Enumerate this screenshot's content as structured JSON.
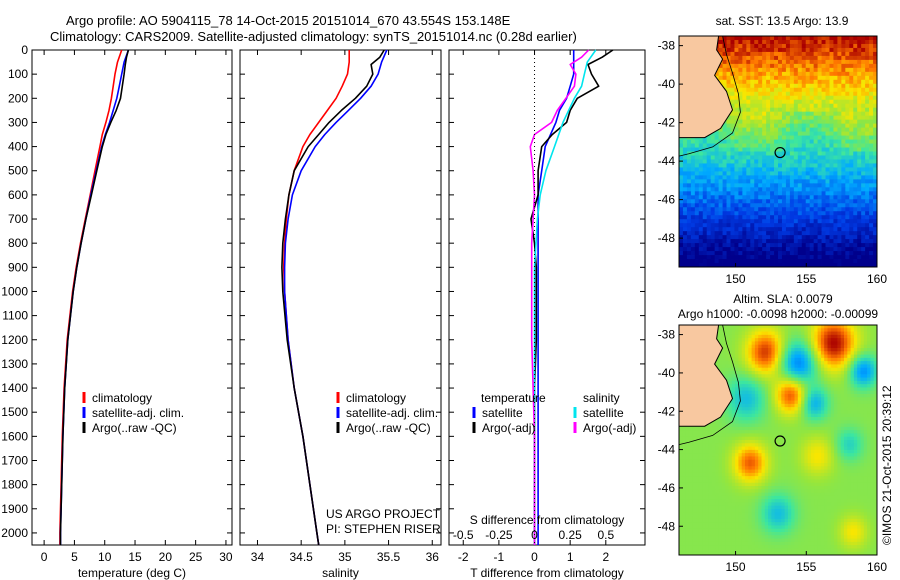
{
  "header": {
    "line1": "Argo profile: AO 5904115_78 14-Oct-2015 20151014_670 43.554S 153.148E",
    "line2": "Climatology: CARS2009. Satellite-adjusted climatology: synTS_20151014.nc (0.28d earlier)"
  },
  "colors": {
    "climatology": "#ff0000",
    "satellite": "#0000ff",
    "argo": "#000000",
    "salinity_satellite": "#00e5ee",
    "salinity_argo": "#ff00ff"
  },
  "chart_data": [
    {
      "type": "line",
      "panel": "temperature",
      "xlabel": "temperature (deg C)",
      "xlim": [
        -2,
        31
      ],
      "xticks": [
        0,
        5,
        10,
        15,
        20,
        25,
        30
      ],
      "ylim": [
        2050,
        0
      ],
      "yticks": [
        0,
        100,
        200,
        300,
        400,
        500,
        600,
        700,
        800,
        900,
        1000,
        1100,
        1200,
        1300,
        1400,
        1500,
        1600,
        1700,
        1800,
        1900,
        2000
      ],
      "legend": [
        "climatology",
        "satellite-adj. clim.",
        "Argo(..raw -QC)"
      ],
      "series": [
        {
          "name": "climatology",
          "depth": [
            0,
            50,
            100,
            150,
            200,
            250,
            300,
            350,
            400,
            500,
            600,
            700,
            800,
            900,
            1000,
            1200,
            1400,
            1600,
            1800,
            2000,
            2050
          ],
          "values": [
            12.8,
            12.1,
            11.7,
            11.4,
            11.1,
            10.7,
            10.2,
            9.6,
            9.2,
            8.4,
            7.6,
            6.8,
            6.0,
            5.3,
            4.7,
            3.8,
            3.3,
            3.0,
            2.8,
            2.6,
            2.6
          ]
        },
        {
          "name": "satellite-adj. clim.",
          "depth": [
            0,
            50,
            100,
            150,
            200,
            250,
            300,
            350,
            400,
            500,
            600,
            700,
            800,
            900,
            1000,
            1200,
            1400,
            1600,
            1800,
            2000,
            2050
          ],
          "values": [
            13.9,
            13.2,
            12.8,
            12.4,
            12.0,
            11.4,
            10.8,
            10.1,
            9.5,
            8.6,
            7.7,
            6.9,
            6.1,
            5.4,
            4.8,
            3.9,
            3.4,
            3.1,
            2.9,
            2.7,
            2.7
          ]
        },
        {
          "name": "Argo(..raw -QC)",
          "depth": [
            0,
            30,
            60,
            100,
            150,
            200,
            250,
            300,
            350,
            400,
            500,
            600,
            700,
            800,
            900,
            1000,
            1200,
            1400,
            1600,
            1800,
            2000,
            2050
          ],
          "values": [
            13.9,
            13.6,
            13.4,
            13.2,
            12.9,
            12.6,
            11.9,
            11.0,
            10.2,
            9.6,
            8.7,
            7.8,
            6.9,
            6.1,
            5.4,
            4.8,
            3.9,
            3.4,
            3.1,
            2.9,
            2.7,
            2.7
          ]
        }
      ]
    },
    {
      "type": "line",
      "panel": "salinity",
      "xlabel": "salinity",
      "xlim": [
        33.8,
        36.1
      ],
      "xticks": [
        34,
        34.5,
        35,
        35.5,
        36
      ],
      "ylim": [
        2050,
        0
      ],
      "legend": [
        "climatology",
        "satellite-adj. clim.",
        "Argo(..raw -QC)"
      ],
      "annotations": [
        "US ARGO PROJECT",
        "PI: STEPHEN RISER"
      ],
      "series": [
        {
          "name": "climatology",
          "depth": [
            0,
            50,
            100,
            150,
            200,
            250,
            300,
            350,
            400,
            500,
            600,
            700,
            800,
            900,
            1000,
            1200,
            1400,
            1600,
            1800,
            2000,
            2050
          ],
          "values": [
            35.05,
            35.05,
            35.03,
            34.97,
            34.9,
            34.8,
            34.7,
            34.6,
            34.52,
            34.42,
            34.36,
            34.33,
            34.31,
            34.3,
            34.31,
            34.35,
            34.42,
            34.52,
            34.6,
            34.68,
            34.7
          ]
        },
        {
          "name": "satellite-adj. clim.",
          "depth": [
            0,
            50,
            100,
            150,
            200,
            250,
            300,
            350,
            400,
            500,
            600,
            700,
            800,
            900,
            1000,
            1200,
            1400,
            1600,
            1800,
            2000,
            2050
          ],
          "values": [
            35.48,
            35.42,
            35.38,
            35.3,
            35.18,
            35.04,
            34.9,
            34.77,
            34.66,
            34.5,
            34.4,
            34.35,
            34.32,
            34.31,
            34.31,
            34.35,
            34.42,
            34.52,
            34.6,
            34.68,
            34.7
          ]
        },
        {
          "name": "Argo(..raw -QC)",
          "depth": [
            0,
            30,
            60,
            100,
            150,
            200,
            250,
            300,
            350,
            400,
            500,
            600,
            700,
            800,
            900,
            1000,
            1200,
            1400,
            1600,
            1800,
            2000,
            2050
          ],
          "values": [
            35.45,
            35.4,
            35.3,
            35.32,
            35.25,
            35.12,
            34.96,
            34.82,
            34.7,
            34.58,
            34.42,
            34.36,
            34.32,
            34.29,
            34.28,
            34.29,
            34.34,
            34.42,
            34.52,
            34.6,
            34.68,
            34.7
          ]
        }
      ]
    },
    {
      "type": "line",
      "panel": "difference",
      "xlabel": "T difference from climatology",
      "xlabel_top": "S difference from climatology",
      "xlim": [
        -2.4,
        3.1
      ],
      "xticks": [
        -2,
        -1,
        0,
        1,
        2
      ],
      "xticks_top": [
        "-0.5",
        "-0.25",
        "0",
        "0.25",
        "0.5"
      ],
      "ylim": [
        2050,
        0
      ],
      "legend": [
        "temperature",
        "satellite",
        "Argo(-adj)",
        "salinity",
        "satellite",
        "Argo(-adj)"
      ],
      "series": [
        {
          "name": "satellite",
          "depth": [
            0,
            50,
            100,
            150,
            200,
            250,
            300,
            400,
            500,
            600,
            700,
            800,
            900,
            1000,
            1200,
            1400,
            1600,
            1800,
            2000,
            2050
          ],
          "values": [
            1.1,
            1.1,
            1.1,
            1.0,
            0.9,
            0.7,
            0.6,
            0.3,
            0.2,
            0.1,
            0.1,
            0.1,
            0.1,
            0.1,
            0.1,
            0.1,
            0.1,
            0.1,
            0.1,
            0.1
          ]
        },
        {
          "name": "Argo(-adj)",
          "depth": [
            0,
            30,
            60,
            100,
            150,
            200,
            250,
            300,
            350,
            400,
            500,
            600,
            700,
            800,
            900,
            1000,
            1200,
            1400,
            1600,
            1800,
            2000,
            2050
          ],
          "values": [
            2.2,
            1.9,
            1.5,
            1.6,
            1.8,
            1.2,
            1.0,
            0.9,
            0.5,
            0.2,
            0.1,
            0.1,
            -0.1,
            0.0,
            0.05,
            0.05,
            0.05,
            0.0,
            0.0,
            0.0,
            0.0,
            0.0
          ]
        },
        {
          "name": "satellite",
          "depth": [
            0,
            50,
            100,
            150,
            200,
            250,
            300,
            400,
            500,
            600,
            700,
            800,
            900,
            1000,
            1200,
            1400,
            1600,
            1800,
            2000,
            2050
          ],
          "values": [
            0.43,
            0.37,
            0.35,
            0.33,
            0.28,
            0.24,
            0.2,
            0.14,
            0.08,
            0.04,
            0.02,
            0.01,
            0.0,
            0.0,
            0.0,
            0.0,
            0.0,
            0.0,
            0.0,
            0.0
          ]
        },
        {
          "name": "Argo(-adj)",
          "depth": [
            0,
            30,
            60,
            100,
            150,
            200,
            250,
            300,
            350,
            400,
            500,
            600,
            700,
            800,
            900,
            1000,
            1200,
            1400,
            1600,
            1800,
            2000,
            2050
          ],
          "values": [
            0.38,
            0.33,
            0.25,
            0.29,
            0.28,
            0.22,
            0.16,
            0.12,
            0.0,
            -0.03,
            -0.01,
            0.0,
            -0.01,
            -0.02,
            -0.02,
            -0.02,
            -0.02,
            -0.01,
            0.0,
            0.0,
            0.0,
            0.0
          ]
        }
      ]
    },
    {
      "type": "heatmap",
      "panel": "sst_map",
      "title": "sat. SST: 13.5 Argo: 13.9",
      "xticks": [
        150,
        155,
        160
      ],
      "yticks": [
        -38,
        -40,
        -42,
        -44,
        -46,
        -48
      ],
      "xlim": [
        146,
        160
      ],
      "ylim": [
        -49.5,
        -37.5
      ],
      "float_position": {
        "lon": 153.148,
        "lat": -43.554
      }
    },
    {
      "type": "heatmap",
      "panel": "sla_map",
      "title": "Altim. SLA: 0.0079",
      "subtitle": "Argo h1000: -0.0098 h2000: -0.00099",
      "xticks": [
        150,
        155,
        160
      ],
      "yticks": [
        -38,
        -40,
        -42,
        -44,
        -46,
        -48
      ],
      "xlim": [
        146,
        160
      ],
      "ylim": [
        -49.5,
        -37.5
      ],
      "float_position": {
        "lon": 153.148,
        "lat": -43.554
      }
    }
  ],
  "footer": {
    "watermark": "©IMOS 21-Oct-2015 20:39:12"
  }
}
